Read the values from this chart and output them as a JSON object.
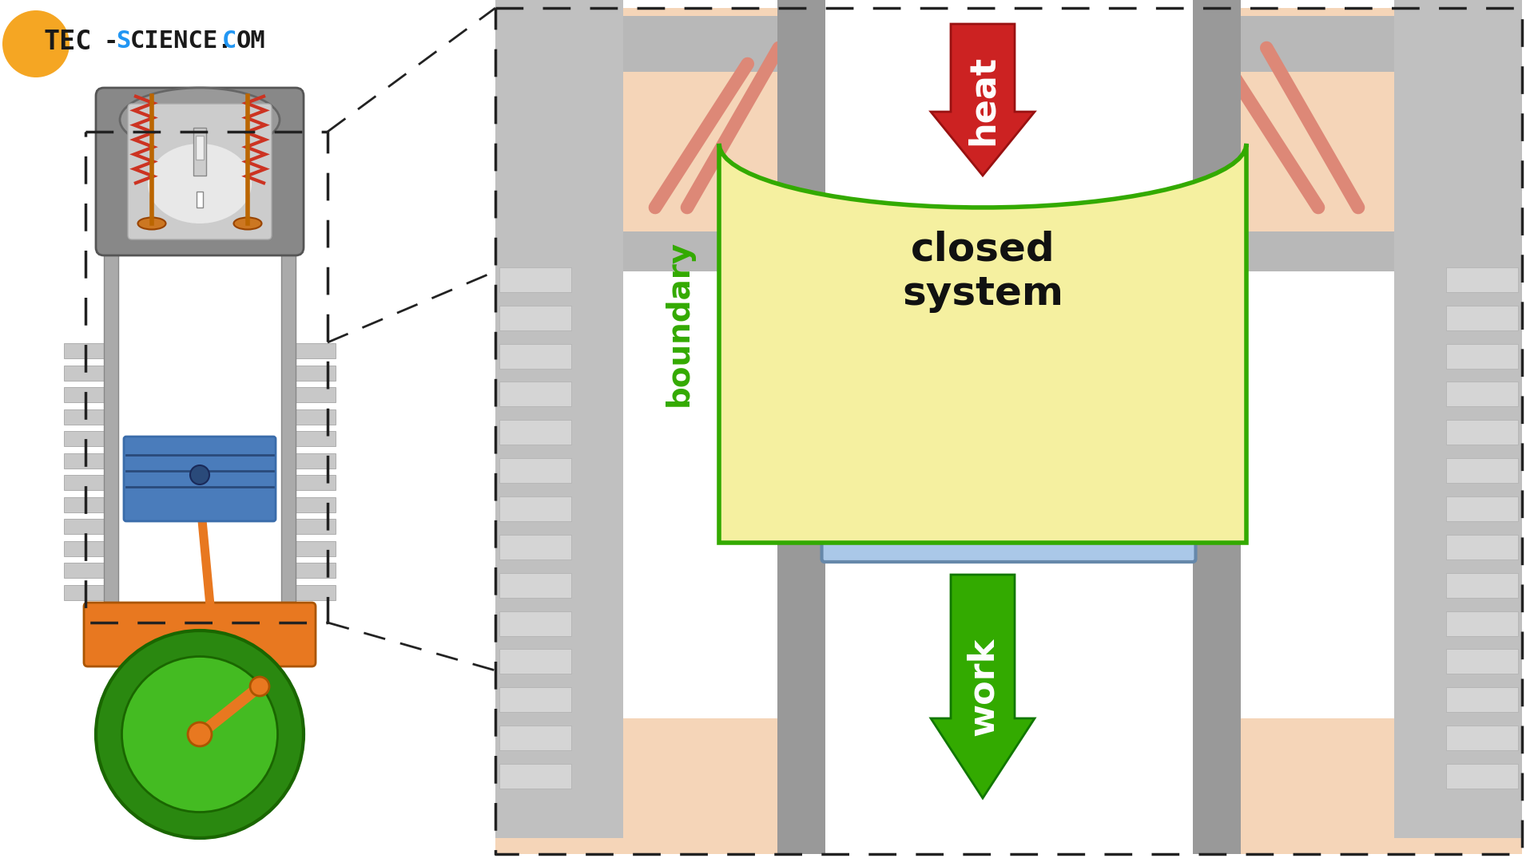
{
  "bg_color": "#ffffff",
  "logo_tec": "TEC",
  "logo_science": "-SCIENCE.COM",
  "logo_orange": "#f5a623",
  "logo_blue": "#2196f3",
  "logo_black": "#1a1a1a",
  "heat_arrow_color": "#cc2222",
  "work_arrow_color": "#33aa00",
  "boundary_color": "#33aa00",
  "closed_system_fill": "#f5f0a0",
  "closed_system_text": "closed\nsystem",
  "heat_text": "heat",
  "work_text": "work",
  "boundary_text": "boundary",
  "dashed_box_color": "#333333",
  "cylinder_gray": "#b0b0b0",
  "cylinder_light": "#d8d8d8",
  "piston_blue": "#4a7cbb",
  "piston_dark": "#3a6caa",
  "cylinder_fins_color": "#c8c8c8",
  "head_color": "#888888",
  "crank_orange": "#e87820",
  "flywheel_green": "#44bb22",
  "flywheel_dark": "#2a8810",
  "spark_plug_color": "#cccccc",
  "valve_color": "#cc7722",
  "spring_color": "#cc3322"
}
